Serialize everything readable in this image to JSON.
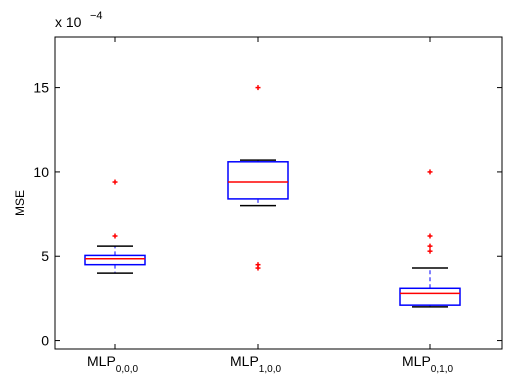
{
  "chart_data": {
    "type": "box",
    "title": "",
    "xlabel": "",
    "ylabel": "MSE",
    "y_multiplier_text": "x 10",
    "y_multiplier_exponent": "−4",
    "ylim": [
      -0.5,
      18
    ],
    "yticks": [
      0,
      5,
      10,
      15
    ],
    "grid": false,
    "colors": {
      "box": "#0000ff",
      "median": "#ff0000",
      "outlier": "#ff0000",
      "whisker": "#000000"
    },
    "categories": [
      {
        "base": "MLP",
        "sub": "0,0,0"
      },
      {
        "base": "MLP",
        "sub": "1,0,0"
      },
      {
        "base": "MLP",
        "sub": "0,1,0"
      }
    ],
    "boxes": [
      {
        "whisker_low": 4.0,
        "q1": 4.5,
        "median": 4.85,
        "q3": 5.05,
        "whisker_high": 5.6,
        "outliers": [
          6.2,
          9.4
        ]
      },
      {
        "whisker_low": 8.0,
        "q1": 8.4,
        "median": 9.4,
        "q3": 10.6,
        "whisker_high": 10.7,
        "outliers": [
          4.5,
          4.3,
          15.0
        ]
      },
      {
        "whisker_low": 2.0,
        "q1": 2.1,
        "median": 2.8,
        "q3": 3.1,
        "whisker_high": 4.3,
        "outliers": [
          5.3,
          5.6,
          6.2,
          10.0
        ]
      }
    ]
  }
}
